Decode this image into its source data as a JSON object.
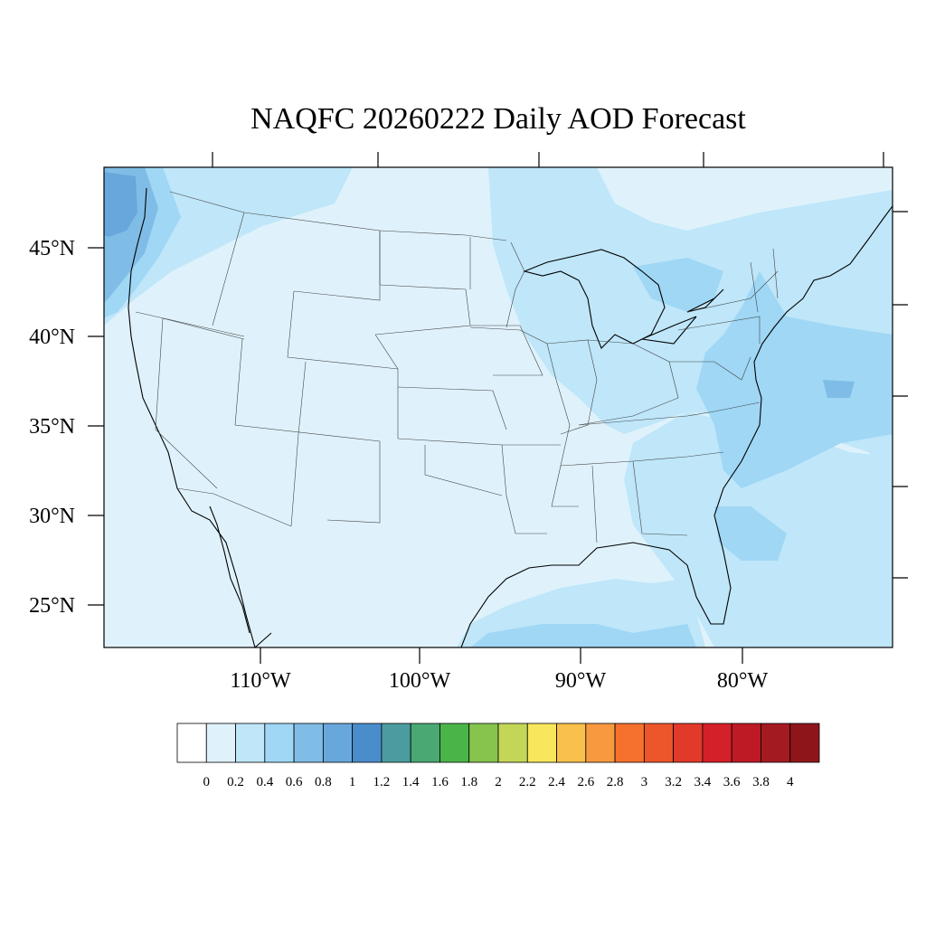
{
  "title": "NAQFC 20260222 Daily AOD Forecast",
  "map": {
    "lon_range": [
      -120,
      -71
    ],
    "lat_range": [
      23,
      49
    ],
    "lon_labels": [
      "110°W",
      "100°W",
      "90°W",
      "80°W"
    ],
    "lat_labels": [
      "45°N",
      "40°N",
      "35°N",
      "30°N",
      "25°N"
    ]
  },
  "colorbar": {
    "labels": [
      "0",
      "0.2",
      "0.4",
      "0.6",
      "0.8",
      "1",
      "1.2",
      "1.4",
      "1.6",
      "1.8",
      "2",
      "2.2",
      "2.4",
      "2.6",
      "2.8",
      "3",
      "3.2",
      "3.4",
      "3.6",
      "3.8",
      "4"
    ],
    "colors": [
      "#ffffff",
      "#dff2fc",
      "#bfe6f9",
      "#9fd7f5",
      "#80bde6",
      "#68a7dc",
      "#4a8dcb",
      "#4b9ca0",
      "#4aa873",
      "#4bb449",
      "#86c44e",
      "#c4d657",
      "#f8e75c",
      "#f9c14b",
      "#f89940",
      "#f6712d",
      "#ed552b",
      "#e23a2a",
      "#d42029",
      "#be1a26",
      "#a31a21",
      "#8e161b"
    ]
  }
}
